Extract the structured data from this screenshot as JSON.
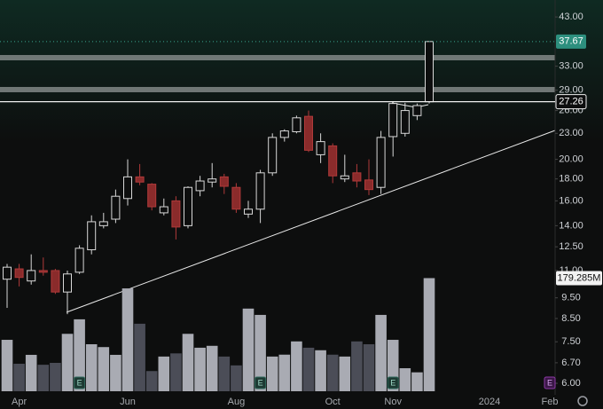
{
  "chart_data": {
    "type": "candlestick",
    "log": true,
    "ylim": [
      5.64,
      47.1
    ],
    "yticks": [
      {
        "value": 43,
        "label": "43.00"
      },
      {
        "value": 33,
        "label": "33.00"
      },
      {
        "value": 29,
        "label": "29.00"
      },
      {
        "value": 26,
        "label": "26.00"
      },
      {
        "value": 23,
        "label": "23.00"
      },
      {
        "value": 20,
        "label": "20.00"
      },
      {
        "value": 18,
        "label": "18.00"
      },
      {
        "value": 16,
        "label": "16.00"
      },
      {
        "value": 14,
        "label": "14.00"
      },
      {
        "value": 12.5,
        "label": "12.50"
      },
      {
        "value": 11,
        "label": "11.00"
      },
      {
        "value": 9.5,
        "label": "9.50"
      },
      {
        "value": 8.5,
        "label": "8.50"
      },
      {
        "value": 7.5,
        "label": "7.50"
      },
      {
        "value": 6.7,
        "label": "6.70"
      },
      {
        "value": 6,
        "label": "6.00"
      }
    ],
    "categories": [
      null,
      "Apr",
      null,
      null,
      null,
      null,
      null,
      null,
      null,
      null,
      "Jun",
      null,
      null,
      null,
      null,
      null,
      null,
      null,
      null,
      "Aug",
      null,
      null,
      null,
      null,
      null,
      null,
      null,
      "Oct",
      null,
      null,
      null,
      null,
      "Nov",
      null,
      null,
      null,
      null,
      null,
      null,
      null,
      "2024",
      null,
      null,
      null,
      null,
      "Feb"
    ],
    "open": [
      10.5,
      11.1,
      10.4,
      11.0,
      11.0,
      9.8,
      10.9,
      12.3,
      14.0,
      14.5,
      16.2,
      18.2,
      17.5,
      15.0,
      16.0,
      14.0,
      16.9,
      17.7,
      18.2,
      17.2,
      14.9,
      15.3,
      18.6,
      22.5,
      23.2,
      25.2,
      20.5,
      21.5,
      18.0,
      18.6,
      17.9,
      17.2,
      22.6,
      23.0,
      25.3,
      27.26,
      null,
      null,
      null,
      null,
      null,
      null,
      null,
      null,
      null,
      null
    ],
    "high": [
      11.4,
      11.4,
      12.0,
      11.8,
      11.1,
      11.0,
      12.6,
      14.8,
      15.0,
      17.0,
      20.0,
      19.5,
      17.6,
      16.2,
      16.4,
      17.3,
      18.3,
      19.6,
      18.5,
      17.6,
      16.0,
      18.9,
      23.0,
      23.5,
      25.3,
      26.0,
      23.0,
      21.8,
      20.5,
      19.5,
      20.0,
      23.3,
      27.3,
      27.1,
      27.0,
      37.7,
      null,
      null,
      null,
      null,
      null,
      null,
      null,
      null,
      null,
      null
    ],
    "low": [
      9.0,
      10.1,
      10.2,
      10.7,
      9.7,
      8.7,
      10.8,
      12.0,
      13.8,
      14.2,
      15.6,
      17.4,
      15.2,
      14.8,
      13.0,
      13.8,
      16.4,
      17.2,
      16.6,
      15.0,
      14.6,
      14.2,
      18.3,
      22.0,
      23.0,
      20.8,
      19.6,
      17.6,
      17.7,
      17.2,
      16.5,
      16.6,
      20.3,
      22.6,
      24.7,
      27.0,
      null,
      null,
      null,
      null,
      null,
      null,
      null,
      null,
      null,
      null
    ],
    "close": [
      11.2,
      10.6,
      11.0,
      10.9,
      9.8,
      10.8,
      12.4,
      14.3,
      14.3,
      16.4,
      18.2,
      17.7,
      15.5,
      15.5,
      13.9,
      17.2,
      17.8,
      18.0,
      17.3,
      15.3,
      15.3,
      18.6,
      22.5,
      23.3,
      25.0,
      21.0,
      22.0,
      18.3,
      18.3,
      17.8,
      17.0,
      22.5,
      27.0,
      26.0,
      26.7,
      37.67,
      null,
      null,
      null,
      null,
      null,
      null,
      null,
      null,
      null,
      null
    ],
    "volume": {
      "vlim": [
        0,
        620
      ],
      "values": [
        81.5,
        43.6,
        57.7,
        42,
        45,
        91,
        114,
        74.5,
        70,
        57.7,
        163,
        107,
        32,
        55,
        60,
        91,
        69,
        72,
        55,
        41,
        131,
        121,
        55,
        58,
        79,
        69,
        65,
        58,
        55,
        79,
        74.5,
        121,
        81.5,
        36.5,
        30,
        179.285,
        null,
        null,
        null,
        null,
        null,
        null,
        null,
        null,
        null,
        null
      ],
      "value_labels": [
        null,
        null,
        null,
        null,
        null,
        null,
        null,
        null,
        null,
        null,
        null,
        null,
        null,
        null,
        null,
        null,
        null,
        null,
        null,
        null,
        null,
        null,
        null,
        null,
        null,
        null,
        null,
        null,
        null,
        null,
        null,
        null,
        null,
        null,
        null,
        "179.285M",
        null,
        null,
        null,
        null,
        null,
        null,
        null,
        null,
        null,
        null
      ]
    },
    "earnings_labels": [
      null,
      null,
      null,
      null,
      null,
      null,
      "E",
      null,
      null,
      null,
      null,
      null,
      null,
      null,
      null,
      null,
      null,
      null,
      null,
      null,
      null,
      "E",
      null,
      null,
      null,
      null,
      null,
      null,
      null,
      null,
      null,
      null,
      "E",
      null,
      null,
      null,
      null,
      null,
      null,
      null,
      null,
      null,
      null,
      null,
      null,
      "E"
    ],
    "price_line": 27.26,
    "up_color": "#d8d8d8",
    "down_color": "#8a2b2b",
    "volume_up_color": "#a9abb3",
    "volume_down_color": "#4b4d57"
  }
}
